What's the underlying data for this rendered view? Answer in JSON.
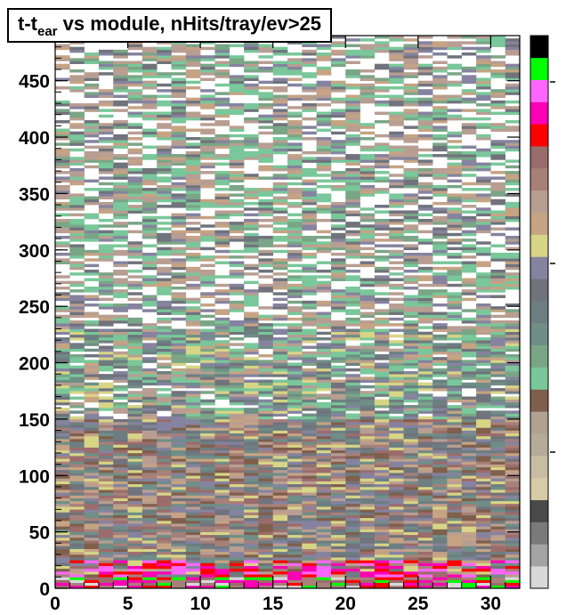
{
  "chart_data": {
    "type": "heatmap",
    "title": {
      "prefix": "t-t",
      "subscript": "ear",
      "suffix": " vs module, nHits/tray/ev>25"
    },
    "xlabel": "",
    "ylabel": "",
    "xlim": [
      0,
      32
    ],
    "ylim": [
      0,
      490
    ],
    "x_bin_width": 1,
    "y_bin_width": 2.5,
    "x_ticks": [
      0,
      5,
      10,
      15,
      20,
      25,
      30
    ],
    "y_ticks": [
      0,
      50,
      100,
      150,
      200,
      250,
      300,
      350,
      400,
      450
    ],
    "x_tick_labels": [
      "0",
      "5",
      "10",
      "15",
      "20",
      "25",
      "30"
    ],
    "y_tick_labels": [
      "0",
      "50",
      "100",
      "150",
      "200",
      "250",
      "300",
      "350",
      "400",
      "450"
    ],
    "palette_colors_bottom_to_top": [
      "#d8d8d8",
      "#a3a3a3",
      "#7a7a7a",
      "#4a4a4a",
      "#d6cba6",
      "#c7bea2",
      "#b4ab99",
      "#b1a192",
      "#7f5f4c",
      "#79c79a",
      "#7aa586",
      "#6f8e87",
      "#6d7e82",
      "#70737c",
      "#85839f",
      "#d7d586",
      "#c5a383",
      "#b89e92",
      "#a78079",
      "#9b6c6c",
      "#ff0000",
      "#ff00b4",
      "#ff66ff",
      "#00ff00",
      "#000000"
    ],
    "grid": false,
    "z_axis_labels_visible": false
  }
}
